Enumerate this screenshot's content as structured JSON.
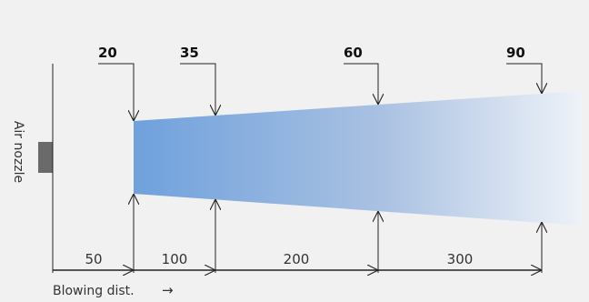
{
  "nozzle_label": "Air nozzle",
  "axis_label": "Blowing dist.",
  "axis_arrow": "→",
  "widths": [
    "20",
    "35",
    "60",
    "90"
  ],
  "distances": [
    "50",
    "100",
    "200",
    "300"
  ],
  "colors": {
    "background": "#f1f1f1",
    "jet_start": "#6fa1dc",
    "jet_end": "#eef2f8",
    "nozzle": "#6a6a6a",
    "line": "#222222"
  }
}
